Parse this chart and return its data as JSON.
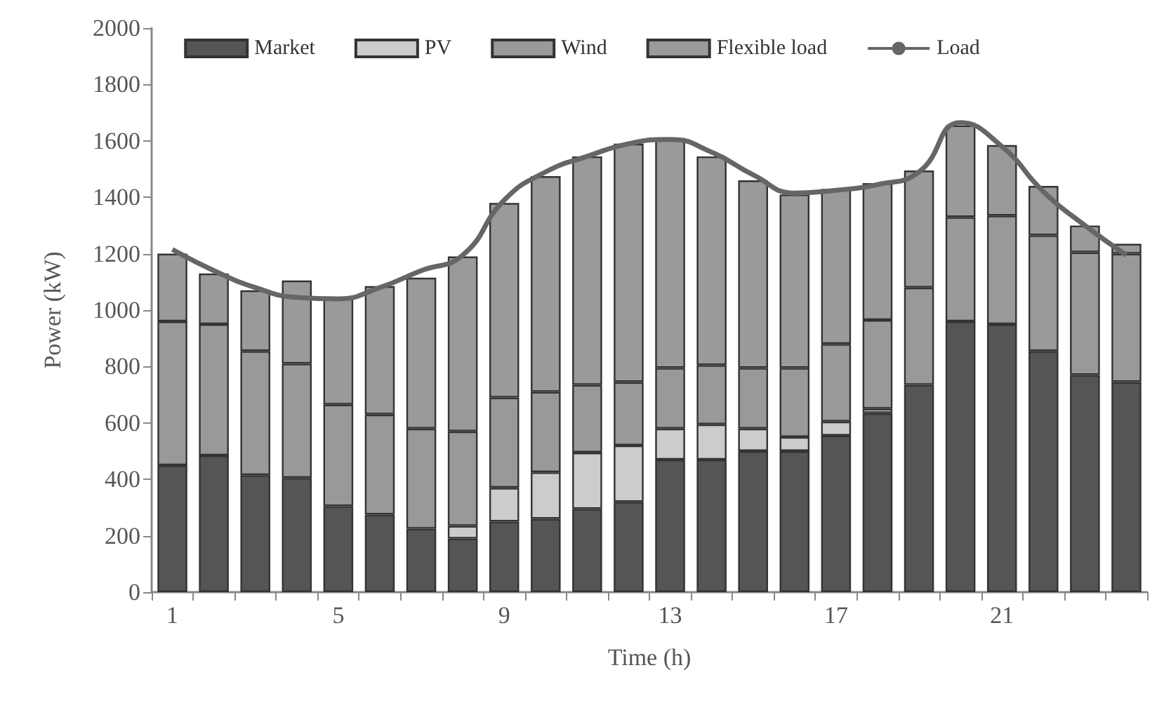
{
  "chart_data": {
    "type": "bar",
    "stacked": true,
    "xlabel": "Time (h)",
    "ylabel": "Power (kW)",
    "categories": [
      "1",
      null,
      null,
      null,
      "5",
      null,
      null,
      null,
      "9",
      null,
      null,
      null,
      "13",
      null,
      null,
      null,
      "17",
      null,
      null,
      null,
      "21",
      null,
      null,
      null
    ],
    "ylim": [
      0,
      2000
    ],
    "yticks": [
      0,
      200,
      400,
      600,
      800,
      1000,
      1200,
      1400,
      1600,
      1800,
      2000
    ],
    "grid": false,
    "legend": "top",
    "marker": "none",
    "line_style": "solid",
    "series": [
      {
        "name": "Market",
        "color": "#555555",
        "values": [
          450,
          485,
          415,
          405,
          305,
          275,
          225,
          190,
          250,
          260,
          295,
          320,
          470,
          470,
          500,
          500,
          555,
          635,
          735,
          960,
          950,
          855,
          770,
          745
        ]
      },
      {
        "name": "PV",
        "color": "#cccccc",
        "values": [
          0,
          0,
          0,
          0,
          0,
          0,
          0,
          45,
          120,
          165,
          200,
          200,
          110,
          125,
          80,
          50,
          50,
          15,
          0,
          0,
          0,
          0,
          0,
          0
        ]
      },
      {
        "name": "Wind",
        "color": "#999999",
        "values": [
          510,
          465,
          440,
          405,
          360,
          355,
          355,
          335,
          320,
          285,
          240,
          225,
          215,
          210,
          215,
          245,
          275,
          315,
          345,
          370,
          385,
          410,
          435,
          455
        ]
      },
      {
        "name": "Flexible load",
        "color": "#9a9a9a",
        "values": [
          240,
          180,
          215,
          295,
          380,
          455,
          535,
          620,
          690,
          765,
          810,
          845,
          815,
          740,
          665,
          615,
          550,
          485,
          415,
          325,
          250,
          175,
          95,
          35
        ]
      },
      {
        "name": "Load",
        "type": "line",
        "color": "#666666",
        "values": [
          1215,
          1140,
          1080,
          1045,
          1040,
          1080,
          1140,
          1195,
          1390,
          1490,
          1545,
          1590,
          1605,
          1560,
          1480,
          1415,
          1425,
          1445,
          1490,
          1665,
          1580,
          1420,
          1300,
          1195
        ]
      }
    ]
  }
}
